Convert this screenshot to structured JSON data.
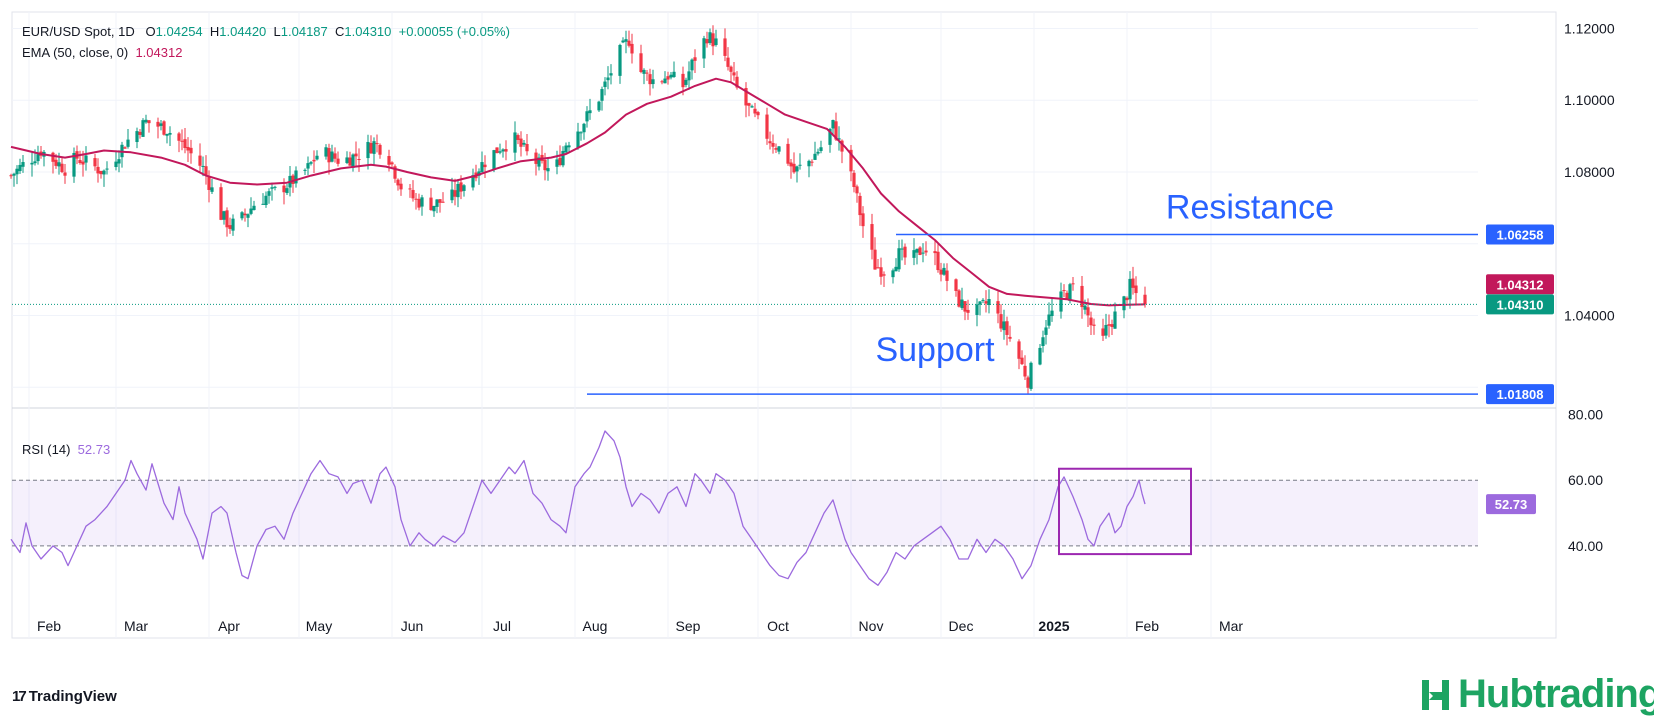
{
  "header": {
    "symbol": "EUR/USD Spot, 1D",
    "o_label": "O",
    "o": "1.04254",
    "h_label": "H",
    "h": "1.04420",
    "l_label": "L",
    "l": "1.04187",
    "c_label": "C",
    "c": "1.04310",
    "change": "+0.00055 (+0.05%)",
    "ema_label": "EMA (50, close, 0)",
    "ema_value": "1.04312",
    "rsi_label": "RSI (14)",
    "rsi_value": "52.73"
  },
  "branding": {
    "tradingview": "TradingView",
    "hub": "Hubtrading"
  },
  "colors": {
    "up": "#089981",
    "down": "#f23645",
    "ema": "#c2185b",
    "rsi": "#9c6ade",
    "level": "#2962ff",
    "box": "#9c27b0"
  },
  "chart_data": [
    {
      "type": "candlestick",
      "x_labels": [
        "Feb",
        "Mar",
        "Apr",
        "May",
        "Jun",
        "Jul",
        "Aug",
        "Sep",
        "Oct",
        "Nov",
        "Dec",
        "2025",
        "Feb",
        "Mar"
      ],
      "yticks": [
        "1.12000",
        "1.10000",
        "1.08000",
        "1.04000"
      ],
      "ylim": [
        1.0142,
        1.1246
      ],
      "close_path": [
        [
          0,
          1.079
        ],
        [
          4,
          1.082
        ],
        [
          10,
          1.086
        ],
        [
          18,
          1.081
        ],
        [
          22,
          1.084
        ],
        [
          31,
          1.08
        ],
        [
          38,
          1.088
        ],
        [
          45,
          1.094
        ],
        [
          52,
          1.092
        ],
        [
          59,
          1.086
        ],
        [
          64,
          1.081
        ],
        [
          67,
          1.075
        ],
        [
          70,
          1.068
        ],
        [
          73,
          1.065
        ],
        [
          77,
          1.067
        ],
        [
          82,
          1.072
        ],
        [
          87,
          1.074
        ],
        [
          93,
          1.077
        ],
        [
          99,
          1.081
        ],
        [
          103,
          1.086
        ],
        [
          110,
          1.083
        ],
        [
          116,
          1.085
        ],
        [
          121,
          1.088
        ],
        [
          125,
          1.086
        ],
        [
          130,
          1.076
        ],
        [
          135,
          1.072
        ],
        [
          141,
          1.071
        ],
        [
          147,
          1.073
        ],
        [
          152,
          1.078
        ],
        [
          158,
          1.083
        ],
        [
          163,
          1.087
        ],
        [
          168,
          1.089
        ],
        [
          172,
          1.085
        ],
        [
          176,
          1.082
        ],
        [
          181,
          1.08
        ],
        [
          185,
          1.088
        ],
        [
          190,
          1.093
        ],
        [
          195,
          1.099
        ],
        [
          199,
          1.106
        ],
        [
          202,
          1.112
        ],
        [
          206,
          1.117
        ],
        [
          210,
          1.108
        ],
        [
          215,
          1.105
        ],
        [
          219,
          1.107
        ],
        [
          224,
          1.104
        ],
        [
          228,
          1.112
        ],
        [
          232,
          1.118
        ],
        [
          235,
          1.116
        ],
        [
          239,
          1.109
        ],
        [
          243,
          1.101
        ],
        [
          248,
          1.095
        ],
        [
          253,
          1.089
        ],
        [
          258,
          1.085
        ],
        [
          261,
          1.08
        ],
        [
          266,
          1.083
        ],
        [
          271,
          1.088
        ],
        [
          274,
          1.093
        ],
        [
          277,
          1.086
        ],
        [
          281,
          1.076
        ],
        [
          284,
          1.065
        ],
        [
          288,
          1.054
        ],
        [
          292,
          1.052
        ],
        [
          296,
          1.057
        ],
        [
          300,
          1.055
        ],
        [
          304,
          1.059
        ],
        [
          308,
          1.056
        ],
        [
          312,
          1.05
        ],
        [
          315,
          1.045
        ],
        [
          318,
          1.042
        ],
        [
          322,
          1.041
        ],
        [
          326,
          1.044
        ],
        [
          330,
          1.038
        ],
        [
          334,
          1.032
        ],
        [
          337,
          1.026
        ],
        [
          339,
          1.022
        ],
        [
          342,
          1.03
        ],
        [
          345,
          1.038
        ],
        [
          348,
          1.042
        ],
        [
          351,
          1.046
        ],
        [
          355,
          1.048
        ],
        [
          358,
          1.042
        ],
        [
          361,
          1.035
        ],
        [
          363,
          1.03
        ],
        [
          365,
          1.036
        ],
        [
          368,
          1.04
        ],
        [
          371,
          1.044
        ],
        [
          373,
          1.048
        ],
        [
          375,
          1.046
        ],
        [
          378,
          1.0431
        ]
      ],
      "ema_path": [
        [
          0,
          1.087
        ],
        [
          10,
          1.085
        ],
        [
          18,
          1.084
        ],
        [
          25,
          1.085
        ],
        [
          31,
          1.086
        ],
        [
          40,
          1.0855
        ],
        [
          50,
          1.084
        ],
        [
          58,
          1.082
        ],
        [
          65,
          1.079
        ],
        [
          73,
          1.077
        ],
        [
          82,
          1.0765
        ],
        [
          92,
          1.077
        ],
        [
          100,
          1.079
        ],
        [
          110,
          1.081
        ],
        [
          120,
          1.082
        ],
        [
          125,
          1.0815
        ],
        [
          132,
          1.08
        ],
        [
          140,
          1.0785
        ],
        [
          148,
          1.0775
        ],
        [
          155,
          1.079
        ],
        [
          162,
          1.081
        ],
        [
          170,
          1.083
        ],
        [
          180,
          1.084
        ],
        [
          185,
          1.085
        ],
        [
          192,
          1.088
        ],
        [
          198,
          1.091
        ],
        [
          205,
          1.096
        ],
        [
          212,
          1.099
        ],
        [
          220,
          1.101
        ],
        [
          228,
          1.104
        ],
        [
          235,
          1.106
        ],
        [
          240,
          1.105
        ],
        [
          246,
          1.102
        ],
        [
          252,
          1.099
        ],
        [
          258,
          1.096
        ],
        [
          265,
          1.094
        ],
        [
          272,
          1.092
        ],
        [
          278,
          1.087
        ],
        [
          284,
          1.081
        ],
        [
          290,
          1.074
        ],
        [
          296,
          1.069
        ],
        [
          302,
          1.065
        ],
        [
          308,
          1.061
        ],
        [
          314,
          1.056
        ],
        [
          320,
          1.052
        ],
        [
          326,
          1.048
        ],
        [
          332,
          1.046
        ],
        [
          338,
          1.0455
        ],
        [
          345,
          1.045
        ],
        [
          352,
          1.0445
        ],
        [
          360,
          1.0432
        ],
        [
          366,
          1.0428
        ],
        [
          372,
          1.043
        ],
        [
          378,
          1.0431
        ]
      ],
      "ema_last": 1.04312,
      "last_close": 1.0431,
      "resistance": {
        "label": "Resistance",
        "value": 1.06258,
        "value_text": "1.06258",
        "from_day": 295
      },
      "support": {
        "label": "Support",
        "value": 1.01808,
        "value_text": "1.01808",
        "from_day": 192
      },
      "ema_tag": "1.04312",
      "close_tag": "1.04310"
    },
    {
      "type": "line",
      "series_label": "RSI (14)",
      "ylim": [
        22,
        82
      ],
      "yticks": [
        "80.00",
        "60.00",
        "40.00"
      ],
      "bands": [
        40,
        60
      ],
      "last_value": 52.73,
      "last_tag": "52.73",
      "path": [
        [
          0,
          42
        ],
        [
          3,
          38
        ],
        [
          5,
          47
        ],
        [
          7,
          40
        ],
        [
          10,
          36
        ],
        [
          14,
          40
        ],
        [
          17,
          38
        ],
        [
          19,
          34
        ],
        [
          22,
          40
        ],
        [
          25,
          46
        ],
        [
          28,
          48
        ],
        [
          32,
          52
        ],
        [
          35,
          56
        ],
        [
          38,
          60
        ],
        [
          40,
          66
        ],
        [
          42,
          62
        ],
        [
          45,
          57
        ],
        [
          47,
          65
        ],
        [
          49,
          59
        ],
        [
          51,
          53
        ],
        [
          54,
          48
        ],
        [
          56,
          58
        ],
        [
          58,
          50
        ],
        [
          62,
          42
        ],
        [
          64,
          36
        ],
        [
          67,
          50
        ],
        [
          70,
          52
        ],
        [
          72,
          50
        ],
        [
          75,
          38
        ],
        [
          77,
          31
        ],
        [
          79,
          30
        ],
        [
          82,
          40
        ],
        [
          85,
          45
        ],
        [
          88,
          46
        ],
        [
          91,
          42
        ],
        [
          94,
          50
        ],
        [
          97,
          56
        ],
        [
          100,
          62
        ],
        [
          103,
          66
        ],
        [
          106,
          62
        ],
        [
          109,
          61
        ],
        [
          112,
          56
        ],
        [
          114,
          59
        ],
        [
          117,
          60
        ],
        [
          120,
          53
        ],
        [
          123,
          62
        ],
        [
          125,
          64
        ],
        [
          128,
          58
        ],
        [
          130,
          48
        ],
        [
          133,
          40
        ],
        [
          136,
          44
        ],
        [
          138,
          42
        ],
        [
          141,
          40
        ],
        [
          144,
          43
        ],
        [
          148,
          41
        ],
        [
          151,
          44
        ],
        [
          154,
          52
        ],
        [
          157,
          60
        ],
        [
          160,
          56
        ],
        [
          163,
          60
        ],
        [
          166,
          64
        ],
        [
          168,
          62
        ],
        [
          171,
          66
        ],
        [
          174,
          56
        ],
        [
          177,
          53
        ],
        [
          180,
          48
        ],
        [
          183,
          46
        ],
        [
          185,
          44
        ],
        [
          188,
          58
        ],
        [
          191,
          62
        ],
        [
          193,
          64
        ],
        [
          196,
          70
        ],
        [
          198,
          75
        ],
        [
          201,
          72
        ],
        [
          203,
          67
        ],
        [
          205,
          58
        ],
        [
          207,
          52
        ],
        [
          210,
          56
        ],
        [
          213,
          54
        ],
        [
          216,
          50
        ],
        [
          219,
          56
        ],
        [
          222,
          58
        ],
        [
          225,
          52
        ],
        [
          228,
          62
        ],
        [
          230,
          60
        ],
        [
          233,
          56
        ],
        [
          235,
          62
        ],
        [
          238,
          60
        ],
        [
          241,
          56
        ],
        [
          244,
          46
        ],
        [
          247,
          42
        ],
        [
          250,
          38
        ],
        [
          253,
          34
        ],
        [
          256,
          31
        ],
        [
          259,
          30
        ],
        [
          262,
          35
        ],
        [
          265,
          38
        ],
        [
          268,
          44
        ],
        [
          271,
          50
        ],
        [
          274,
          54
        ],
        [
          276,
          48
        ],
        [
          278,
          42
        ],
        [
          280,
          38
        ],
        [
          283,
          34
        ],
        [
          286,
          30
        ],
        [
          289,
          28
        ],
        [
          292,
          32
        ],
        [
          295,
          38
        ],
        [
          298,
          36
        ],
        [
          301,
          40
        ],
        [
          304,
          42
        ],
        [
          307,
          44
        ],
        [
          310,
          46
        ],
        [
          313,
          42
        ],
        [
          316,
          36
        ],
        [
          319,
          36
        ],
        [
          322,
          42
        ],
        [
          325,
          38
        ],
        [
          328,
          42
        ],
        [
          331,
          40
        ],
        [
          334,
          36
        ],
        [
          337,
          30
        ],
        [
          340,
          34
        ],
        [
          343,
          42
        ],
        [
          346,
          48
        ],
        [
          349,
          58
        ],
        [
          351,
          61
        ],
        [
          354,
          55
        ],
        [
          357,
          48
        ],
        [
          359,
          42
        ],
        [
          361,
          40
        ],
        [
          363,
          46
        ],
        [
          366,
          50
        ],
        [
          368,
          44
        ],
        [
          370,
          46
        ],
        [
          372,
          52
        ],
        [
          374,
          55
        ],
        [
          376,
          60
        ],
        [
          377,
          56
        ],
        [
          378,
          52.73
        ]
      ]
    }
  ]
}
